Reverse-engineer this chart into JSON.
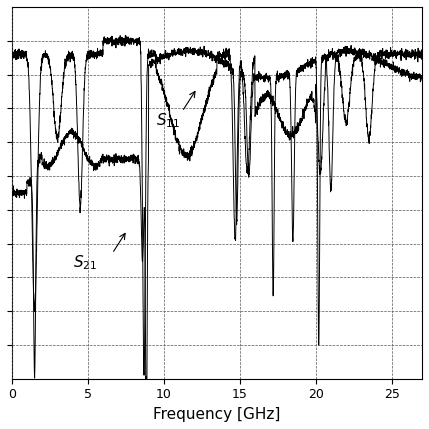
{
  "title": "",
  "xlabel": "Frequency [GHz]",
  "ylabel": "",
  "xlim": [
    0,
    27
  ],
  "ylim": [
    -10,
    1
  ],
  "xticks": [
    0,
    5,
    10,
    15,
    20,
    25
  ],
  "yticks": [
    -9,
    -8,
    -7,
    -6,
    -5,
    -4,
    -3,
    -2,
    -1,
    0
  ],
  "grid_color": "#555555",
  "line_color": "#000000",
  "background_color": "#ffffff",
  "figsize": [
    4.29,
    4.29
  ],
  "dpi": 100
}
